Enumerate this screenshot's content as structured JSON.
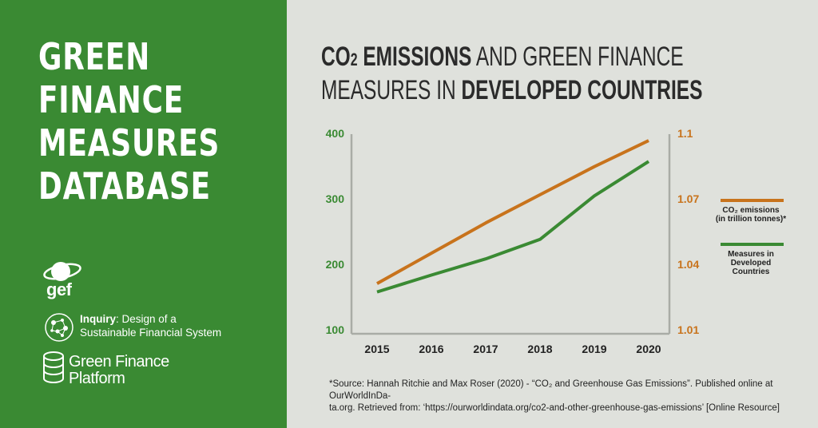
{
  "colors": {
    "green": "#3a8a33",
    "orange": "#c8731c",
    "panel": "#dfe1dc",
    "text": "#222222"
  },
  "sidebar": {
    "title_lines": [
      "GREEN",
      "FINANCE",
      "MEASURES",
      "DATABASE"
    ],
    "logos": {
      "gef": "gef",
      "inquiry_bold": "Inquiry",
      "inquiry_rest": ": Design of a",
      "inquiry_line2": "Sustainable Financial System",
      "gfp_line1": "Green Finance",
      "gfp_line2": "Platform"
    }
  },
  "header": {
    "line1_bold": "CO",
    "line1_sub": "2",
    "line1_bold2": " EMISSIONS",
    "line1_rest": " AND GREEN FINANCE",
    "line2_rest": "MEASURES IN ",
    "line2_bold": "DEVELOPED COUNTRIES"
  },
  "chart_data": {
    "type": "line",
    "x": [
      "2015",
      "2016",
      "2017",
      "2018",
      "2019",
      "2020"
    ],
    "y_left": {
      "ticks": [
        "400",
        "300",
        "200",
        "100"
      ],
      "ylim": [
        100,
        400
      ]
    },
    "y_right": {
      "ticks": [
        "1.1",
        "1.07",
        "1.04",
        "1.01"
      ],
      "ylim": [
        1.01,
        1.1
      ]
    },
    "series": [
      {
        "name": "CO₂ emissions (in trillion tonnes)*",
        "axis": "right",
        "color": "#c8731c",
        "values": [
          1.031,
          1.045,
          1.059,
          1.072,
          1.085,
          1.097
        ]
      },
      {
        "name": "Measures in Developed Countries",
        "axis": "left",
        "color": "#3a8a33",
        "values": [
          157,
          183,
          208,
          238,
          305,
          358
        ]
      }
    ],
    "legend": {
      "placement": "right",
      "co2_lines": [
        "CO₂ emissions",
        "(in trillion tonnes)*"
      ],
      "measures_lines": [
        "Measures in",
        "Developed",
        "Countries"
      ]
    },
    "grid": false
  },
  "source": {
    "line1": "*Source: Hannah Ritchie and Max Roser (2020) - “CO₂ and Greenhouse Gas Emissions”. Published online at OurWorldInDa-",
    "line2": "ta.org. Retrieved from: ‘https://ourworldindata.org/co2-and-other-greenhouse-gas-emissions’ [Online Resource]"
  }
}
